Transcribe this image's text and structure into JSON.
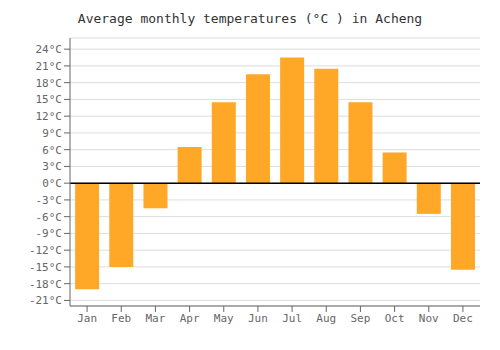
{
  "chart_data": {
    "type": "bar",
    "title": "Average monthly temperatures (°C ) in Acheng",
    "categories": [
      "Jan",
      "Feb",
      "Mar",
      "Apr",
      "May",
      "Jun",
      "Jul",
      "Aug",
      "Sep",
      "Oct",
      "Nov",
      "Dec"
    ],
    "values": [
      -19,
      -15,
      -4.5,
      6.5,
      14.5,
      19.5,
      22.5,
      20.5,
      14.5,
      5.5,
      -5.5,
      -15.5
    ],
    "color": "#FFA726",
    "ylim": [
      -22,
      26
    ],
    "yticks": [
      {
        "value": -21,
        "label": "-21°C"
      },
      {
        "value": -18,
        "label": "-18°C"
      },
      {
        "value": -15,
        "label": "-15°C"
      },
      {
        "value": -12,
        "label": "-12°C"
      },
      {
        "value": -9,
        "label": "-9°C"
      },
      {
        "value": -6,
        "label": "-6°C"
      },
      {
        "value": -3,
        "label": "-3°C"
      },
      {
        "value": 0,
        "label": "0°C"
      },
      {
        "value": 3,
        "label": "3°C"
      },
      {
        "value": 6,
        "label": "6°C"
      },
      {
        "value": 9,
        "label": "9°C"
      },
      {
        "value": 12,
        "label": "12°C"
      },
      {
        "value": 15,
        "label": "15°C"
      },
      {
        "value": 18,
        "label": "18°C"
      },
      {
        "value": 21,
        "label": "21°C"
      },
      {
        "value": 24,
        "label": "24°C"
      }
    ],
    "grid": true
  }
}
